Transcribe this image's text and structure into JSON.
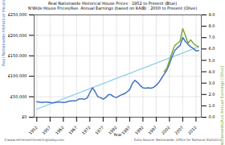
{
  "chart_data": {
    "type": "line",
    "title": "Real Nationwide Historical House Prices : 1952 to Present (Blue)",
    "subtitle": "N'Wide House Prices/Ave. Annual Earnings (based on KAIB) : 2000 to Present (Olive)",
    "xlabel": "Year",
    "ylabel": "Real Nationwide Historical House Prices [Blue]",
    "y2label": "Nationwide/Ave Annual Earnings [Olive]",
    "annotations": [
      "©www.retirementinvestingtoday.com",
      "Data Source: Nationwide, Office for National Statistics"
    ],
    "xlim": [
      1951,
      2014
    ],
    "xticks": [
      1952,
      1957,
      1962,
      1967,
      1972,
      1977,
      1982,
      1987,
      1992,
      1997,
      2002,
      2007,
      2012
    ],
    "ylim": [
      0,
      250000
    ],
    "yticks": [
      {
        "value": 0,
        "label": "£0"
      },
      {
        "value": 50000,
        "label": "£50,000"
      },
      {
        "value": 100000,
        "label": "£100,000"
      },
      {
        "value": 150000,
        "label": "£150,000"
      },
      {
        "value": 200000,
        "label": "£200,000"
      },
      {
        "value": 250000,
        "label": "£250,000"
      }
    ],
    "y2lim": [
      0.0,
      9.0
    ],
    "y2ticks": [
      {
        "value": 0,
        "label": "0.0"
      },
      {
        "value": 1,
        "label": "1.0"
      },
      {
        "value": 2,
        "label": "2.0"
      },
      {
        "value": 3,
        "label": "3.0"
      },
      {
        "value": 4,
        "label": "4.0"
      },
      {
        "value": 5,
        "label": "5.0"
      },
      {
        "value": 6,
        "label": "6.0"
      },
      {
        "value": 7,
        "label": "7.0"
      },
      {
        "value": 8,
        "label": "8.0"
      },
      {
        "value": 9,
        "label": "9.0"
      }
    ],
    "grid": true,
    "series": [
      {
        "color": "#92d0e8",
        "x": [
          1952,
          2013
        ],
        "values": [
          20000,
          172000
        ]
      },
      {
        "color": "#4472c4",
        "x": [
          1952,
          1953,
          1954,
          1955,
          1956,
          1957,
          1958,
          1959,
          1960,
          1961,
          1962,
          1963,
          1964,
          1965,
          1966,
          1967,
          1968,
          1969,
          1970,
          1971,
          1972,
          1973,
          1974,
          1975,
          1976,
          1977,
          1978,
          1979,
          1980,
          1981,
          1982,
          1983,
          1984,
          1985,
          1986,
          1987,
          1988,
          1989,
          1990,
          1991,
          1992,
          1993,
          1994,
          1995,
          1996,
          1997,
          1998,
          1999,
          2000,
          2001,
          2002,
          2003,
          2004,
          2005,
          2006,
          2007,
          2008,
          2009,
          2010,
          2011,
          2012,
          2013
        ],
        "values": [
          38000,
          37000,
          36000,
          37000,
          37000,
          36000,
          35000,
          36000,
          37000,
          37000,
          36000,
          37000,
          39000,
          40000,
          40000,
          41000,
          45000,
          45000,
          44000,
          47000,
          60000,
          72000,
          62000,
          50000,
          48000,
          44000,
          48000,
          55000,
          55000,
          50000,
          48000,
          52000,
          55000,
          57000,
          62000,
          67000,
          82000,
          90000,
          85000,
          77000,
          72000,
          71000,
          72000,
          71000,
          73000,
          78000,
          85000,
          95000,
          105000,
          115000,
          130000,
          148000,
          163000,
          170000,
          175000,
          195000,
          185000,
          178000,
          172000,
          168000,
          162000,
          163000
        ]
      },
      {
        "color": "#7daa3c",
        "axis": "y2",
        "x": [
          2000,
          2001,
          2002,
          2003,
          2004,
          2005,
          2006,
          2007,
          2008,
          2009,
          2010,
          2011,
          2012,
          2013
        ],
        "values": [
          4.0,
          4.3,
          5.0,
          5.7,
          6.3,
          6.5,
          6.7,
          7.8,
          7.2,
          6.5,
          6.8,
          6.5,
          6.3,
          6.2
        ]
      }
    ]
  }
}
